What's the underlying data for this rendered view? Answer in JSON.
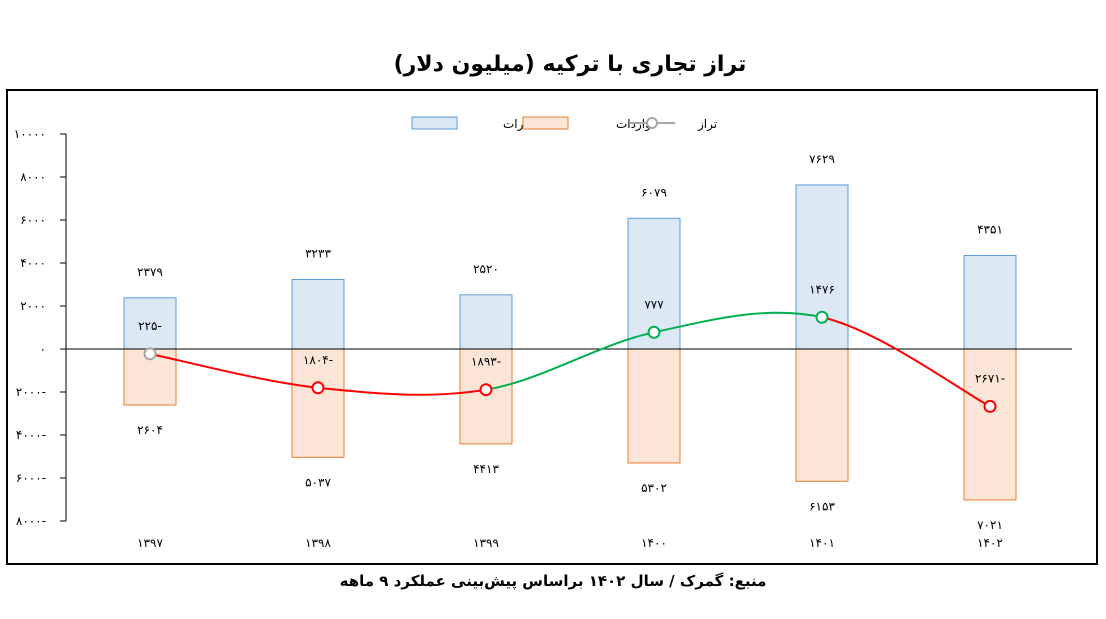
{
  "chart_data": {
    "type": "bar",
    "title": "تراز تجاری با ترکیه (میلیون دلار)",
    "source": "منبع: گمرک / سال ۱۴۰۲ براساس پیش‌بینی عملکرد ۹ ماهه",
    "categories": [
      "۱۳۹۷",
      "۱۳۹۸",
      "۱۳۹۹",
      "۱۴۰۰",
      "۱۴۰۱",
      "۱۴۰۲"
    ],
    "ylim": [
      -8000,
      10000
    ],
    "yticks": [
      10000,
      8000,
      6000,
      4000,
      2000,
      0,
      -2000,
      -4000,
      -6000,
      -8000
    ],
    "ytick_labels": [
      "۱۰۰۰۰",
      "۸۰۰۰",
      "۶۰۰۰",
      "۴۰۰۰",
      "۲۰۰۰",
      "۰",
      "۲۰۰۰-",
      "۴۰۰۰-",
      "۶۰۰۰-",
      "۸۰۰۰-"
    ],
    "legend_position": "top-center",
    "series": [
      {
        "name": "صادرات",
        "type": "bar",
        "color": "#dde8f5",
        "stroke": "#5b9bd5",
        "values": [
          2379,
          3233,
          2520,
          6079,
          7629,
          4351
        ],
        "labels": [
          "۲۳۷۹",
          "۳۲۳۳",
          "۲۵۲۰",
          "۶۰۷۹",
          "۷۶۲۹",
          "۴۳۵۱"
        ]
      },
      {
        "name": "واردات",
        "type": "bar",
        "color": "#fbe5d6",
        "stroke": "#ed7d31",
        "values": [
          -2604,
          -5037,
          -4413,
          -5302,
          -6153,
          -7021
        ],
        "labels": [
          "۲۶۰۴",
          "۵۰۳۷",
          "۴۴۱۳",
          "۵۳۰۲",
          "۶۱۵۳",
          "۷۰۲۱"
        ]
      },
      {
        "name": "تراز",
        "type": "line",
        "color": "#a6a6a6",
        "up_color": "#00b050",
        "down_color": "#ff0000",
        "values": [
          -225,
          -1804,
          -1893,
          777,
          1476,
          -2671
        ],
        "labels": [
          "۲۲۵-",
          "۱۸۰۴-",
          "۱۸۹۳-",
          "۷۷۷",
          "۱۴۷۶",
          "۲۶۷۱-"
        ]
      }
    ]
  }
}
